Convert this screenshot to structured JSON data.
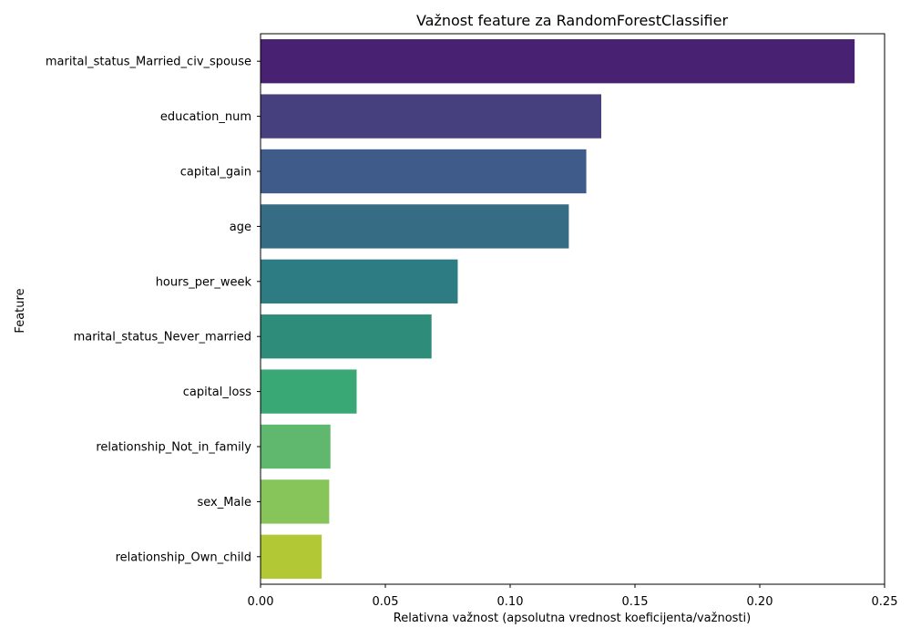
{
  "chart_data": {
    "type": "bar",
    "orientation": "horizontal",
    "title": "Važnost feature za RandomForestClassifier",
    "xlabel": "Relativna važnost (apsolutna vrednost koeficijenta/važnosti)",
    "ylabel": "Feature",
    "xlim": [
      0,
      0.25
    ],
    "xticks": [
      "0.00",
      "0.05",
      "0.10",
      "0.15",
      "0.20",
      "0.25"
    ],
    "grid": false,
    "categories": [
      "marital_status_Married_civ_spouse",
      "education_num",
      "capital_gain",
      "age",
      "hours_per_week",
      "marital_status_Never_married",
      "capital_loss",
      "relationship_Not_in_family",
      "sex_Male",
      "relationship_Own_child"
    ],
    "values": [
      0.238,
      0.1365,
      0.1305,
      0.1235,
      0.079,
      0.0685,
      0.0385,
      0.028,
      0.0275,
      0.0245
    ],
    "colors": [
      "#482172",
      "#46407e",
      "#3e5b8a",
      "#366d84",
      "#2e7c83",
      "#2e8c7b",
      "#3aa874",
      "#5fb86e",
      "#87c45a",
      "#b2c935"
    ]
  }
}
